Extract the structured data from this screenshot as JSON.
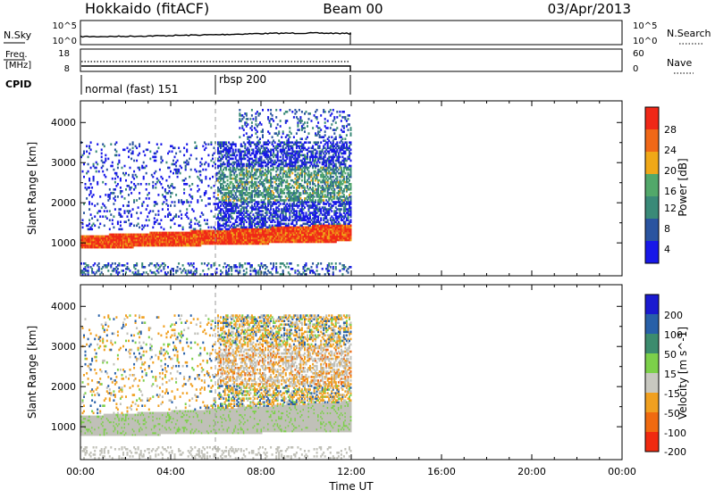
{
  "header": {
    "station": "Hokkaido (fitACF)",
    "beam": "Beam 00",
    "date": "03/Apr/2013"
  },
  "noise_panel": {
    "left_label": "N.Sky",
    "right_label": "N.Search",
    "left_ticks": [
      "10^5",
      "10^0"
    ],
    "right_ticks": [
      "10^5",
      "10^0"
    ]
  },
  "freq_panel": {
    "left_label_line1": "Freq.",
    "left_label_line2": "[MHz]",
    "right_label": "Nave",
    "left_ticks": [
      "18",
      "8"
    ],
    "right_ticks": [
      "60",
      "0"
    ]
  },
  "cpid": {
    "label": "CPID",
    "segments": [
      {
        "name": "normal (fast) 151",
        "start_hour": 0,
        "end_hour": 6
      },
      {
        "name": "rbsp 200",
        "start_hour": 6,
        "end_hour": 12
      }
    ]
  },
  "x_axis": {
    "label": "Time UT",
    "ticks": [
      "00:00",
      "04:00",
      "08:00",
      "12:00",
      "16:00",
      "20:00",
      "00:00"
    ]
  },
  "chart_data": [
    {
      "type": "heatmap",
      "title": "",
      "xlabel": "Time UT",
      "ylabel": "Slant Range [km]",
      "xlim_hours": [
        0,
        24
      ],
      "ylim": [
        180,
        4540
      ],
      "yticks": [
        "1000",
        "2000",
        "3000",
        "4000"
      ],
      "colorbar": {
        "label": "Power [dB]",
        "ticks": [
          "28",
          "24",
          "20",
          "16",
          "12",
          "8",
          "4"
        ],
        "range": [
          0,
          30
        ]
      },
      "data_extent_hours": [
        0,
        12
      ],
      "features": [
        {
          "desc": "strong echo band",
          "range_km": [
            800,
            1300
          ],
          "hours": [
            0,
            12
          ],
          "power_db": 26
        },
        {
          "desc": "weak scatter",
          "range_km": [
            1300,
            3500
          ],
          "hours": [
            0,
            12
          ],
          "power_db": 6
        },
        {
          "desc": "moderate band",
          "range_km": [
            2000,
            3000
          ],
          "hours": [
            6,
            12
          ],
          "power_db": 12
        }
      ]
    },
    {
      "type": "heatmap",
      "title": "",
      "xlabel": "Time UT",
      "ylabel": "Slant Range [km]",
      "xlim_hours": [
        0,
        24
      ],
      "ylim": [
        180,
        4540
      ],
      "yticks": [
        "1000",
        "2000",
        "3000",
        "4000"
      ],
      "colorbar": {
        "label": "Velocity [m s^-1]",
        "ticks": [
          "200",
          "100",
          "50",
          "15",
          "-15",
          "-50",
          "-100",
          "-200"
        ],
        "range": [
          -250,
          250
        ]
      },
      "data_extent_hours": [
        0,
        12
      ],
      "features": [
        {
          "desc": "ground scatter (grey)",
          "range_km": [
            700,
            1400
          ],
          "hours": [
            0,
            12
          ],
          "velocity": 0
        },
        {
          "desc": "negative velocity echoes",
          "range_km": [
            2000,
            3800
          ],
          "hours": [
            6,
            12
          ],
          "velocity": -60
        }
      ]
    }
  ],
  "colors": {
    "power_scale": [
      "#1818e8",
      "#2a54a0",
      "#3a8a78",
      "#52a86a",
      "#f0a818",
      "#f06818",
      "#f02818"
    ],
    "velocity_scale": [
      "#1a1ad0",
      "#2860a8",
      "#3c8c6e",
      "#7cd04a",
      "#c8c8c0",
      "#f0a020",
      "#f06a10",
      "#f02a10"
    ],
    "ground_scatter": "#c0c0b8"
  }
}
